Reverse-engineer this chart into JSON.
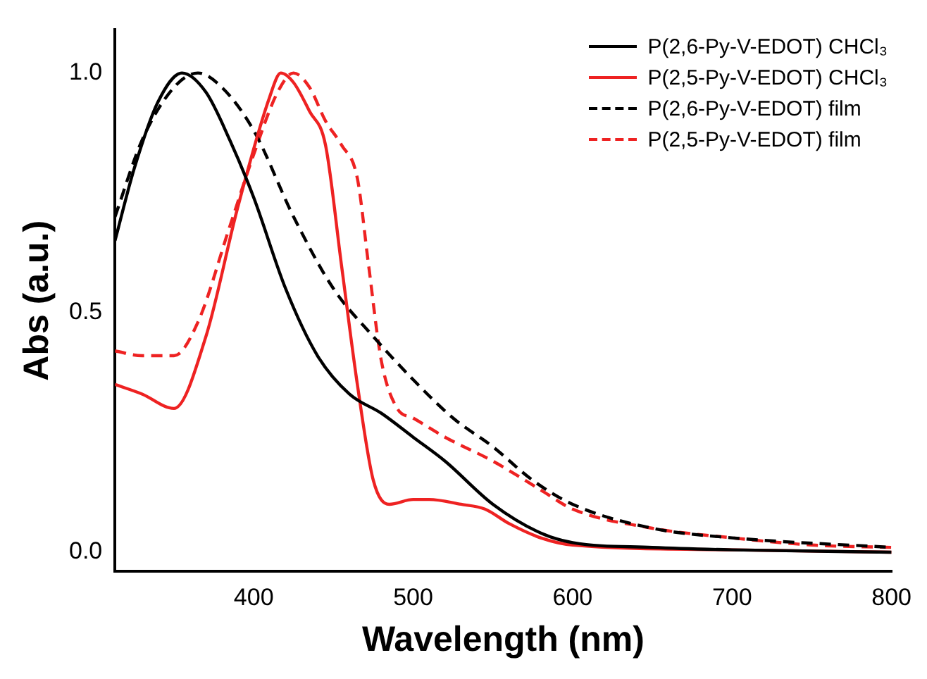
{
  "chart_data": {
    "type": "line",
    "xlabel": "Wavelength (nm)",
    "ylabel": "Abs (a.u.)",
    "xlim": [
      313,
      800
    ],
    "ylim": [
      -0.04,
      1.09
    ],
    "xticks": [
      400,
      500,
      600,
      700,
      800
    ],
    "yticks": [
      {
        "value": 0,
        "label": "0.0"
      },
      {
        "value": 0.5,
        "label": "0.5"
      },
      {
        "value": 1,
        "label": "1.0"
      }
    ],
    "legend": "top right",
    "grid": false,
    "series": [
      {
        "name": "P(2,6-Py-V-EDOT) CHCl₃",
        "color": "#000000",
        "line_style": "solid",
        "x": [
          313,
          325,
          340,
          355,
          370,
          385,
          400,
          420,
          440,
          460,
          480,
          500,
          520,
          550,
          580,
          600,
          650,
          700,
          800
        ],
        "values": [
          0.65,
          0.8,
          0.94,
          1.0,
          0.96,
          0.86,
          0.74,
          0.55,
          0.41,
          0.33,
          0.29,
          0.24,
          0.19,
          0.1,
          0.04,
          0.02,
          0.01,
          0.005,
          0
        ]
      },
      {
        "name": "P(2,5-Py-V-EDOT) CHCl₃",
        "color": "#ee2222",
        "line_style": "solid",
        "x": [
          313,
          330,
          350,
          370,
          390,
          410,
          417,
          425,
          435,
          445,
          455,
          465,
          475,
          485,
          500,
          510,
          530,
          545,
          560,
          580,
          600,
          700,
          800
        ],
        "values": [
          0.35,
          0.33,
          0.3,
          0.45,
          0.72,
          0.95,
          1.0,
          0.98,
          0.92,
          0.85,
          0.6,
          0.35,
          0.15,
          0.1,
          0.11,
          0.11,
          0.1,
          0.09,
          0.06,
          0.03,
          0.015,
          0.005,
          0
        ]
      },
      {
        "name": "P(2,6-Py-V-EDOT) film",
        "color": "#000000",
        "line_style": "dashed",
        "x": [
          313,
          330,
          350,
          365,
          380,
          400,
          425,
          450,
          475,
          500,
          525,
          550,
          575,
          600,
          650,
          700,
          800
        ],
        "values": [
          0.7,
          0.86,
          0.97,
          1.0,
          0.97,
          0.88,
          0.7,
          0.55,
          0.45,
          0.36,
          0.28,
          0.22,
          0.15,
          0.1,
          0.05,
          0.03,
          0.01
        ]
      },
      {
        "name": "P(2,5-Py-V-EDOT) film",
        "color": "#ee2222",
        "line_style": "dashed",
        "x": [
          313,
          330,
          350,
          365,
          385,
          400,
          415,
          425,
          435,
          445,
          455,
          465,
          472,
          480,
          490,
          500,
          520,
          550,
          580,
          600,
          650,
          700,
          750,
          800
        ],
        "values": [
          0.42,
          0.41,
          0.41,
          0.48,
          0.68,
          0.83,
          0.96,
          1.0,
          0.97,
          0.9,
          0.85,
          0.78,
          0.6,
          0.4,
          0.3,
          0.28,
          0.24,
          0.19,
          0.13,
          0.09,
          0.05,
          0.03,
          0.015,
          0.01
        ]
      }
    ]
  }
}
